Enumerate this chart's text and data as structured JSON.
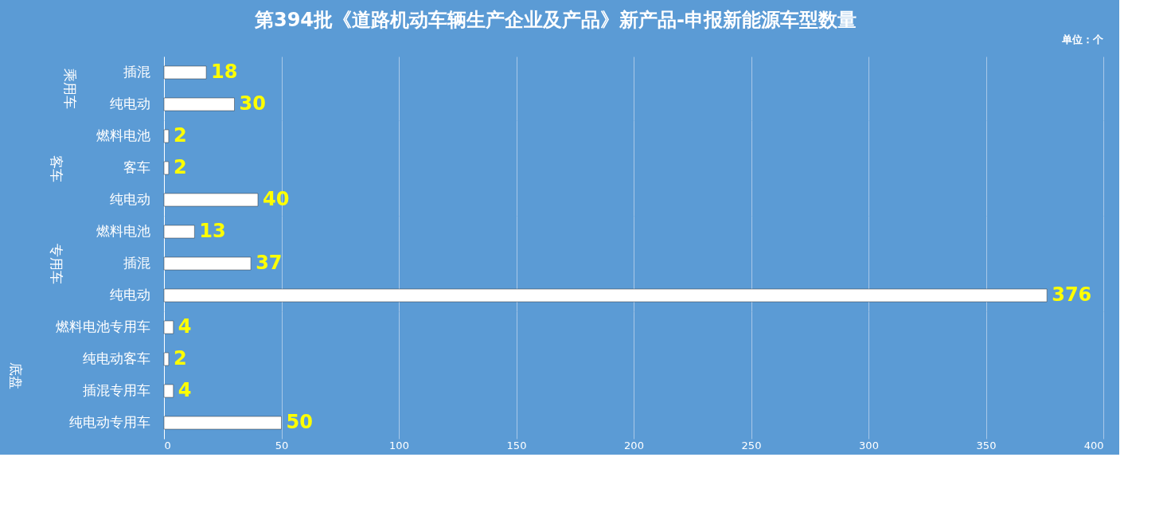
{
  "chart_data": [
    {
      "type": "bar",
      "orientation": "horizontal",
      "title": "第394批《道路机动车辆生产企业及产品》新产品-申报新能源车型数量",
      "annotations": [
        "单位：个"
      ],
      "ylabel": "乘用车",
      "categories": [
        "插混",
        "纯电动"
      ],
      "values": [
        18,
        30
      ],
      "color": "#ffffff",
      "xlim": [
        0,
        400
      ],
      "xticks": [
        0,
        50,
        100,
        150,
        200,
        250,
        300,
        350,
        400
      ],
      "grid": "x",
      "data_labels": true,
      "tick_labels": "y"
    },
    {
      "type": "bar",
      "orientation": "horizontal",
      "ylabel": "客车",
      "categories": [
        "燃料电池",
        "客车",
        "纯电动"
      ],
      "values": [
        2,
        2,
        40
      ],
      "color": "#ffffff",
      "xlim": [
        0,
        400
      ],
      "xticks": [
        0,
        50,
        100,
        150,
        200,
        250,
        300,
        350,
        400
      ],
      "grid": "x",
      "data_labels": true,
      "tick_labels": "y"
    },
    {
      "type": "bar",
      "orientation": "horizontal",
      "ylabel": "专用车",
      "categories": [
        "燃料电池",
        "插混",
        "纯电动"
      ],
      "values": [
        13,
        37,
        376
      ],
      "color": "#ffffff",
      "xlim": [
        0,
        400
      ],
      "xticks": [
        0,
        50,
        100,
        150,
        200,
        250,
        300,
        350,
        400
      ],
      "grid": "x",
      "data_labels": true,
      "tick_labels": "y"
    },
    {
      "type": "bar",
      "orientation": "horizontal",
      "ylabel": "底盘",
      "categories": [
        "燃料电池专用车",
        "纯电动客车",
        "插混专用车",
        "纯电动专用车"
      ],
      "values": [
        4,
        2,
        4,
        50
      ],
      "color": "#ffffff",
      "xlim": [
        0,
        400
      ],
      "xticks": [
        0,
        50,
        100,
        150,
        200,
        250,
        300,
        350,
        400
      ],
      "grid": "x",
      "data_labels": true
    }
  ]
}
